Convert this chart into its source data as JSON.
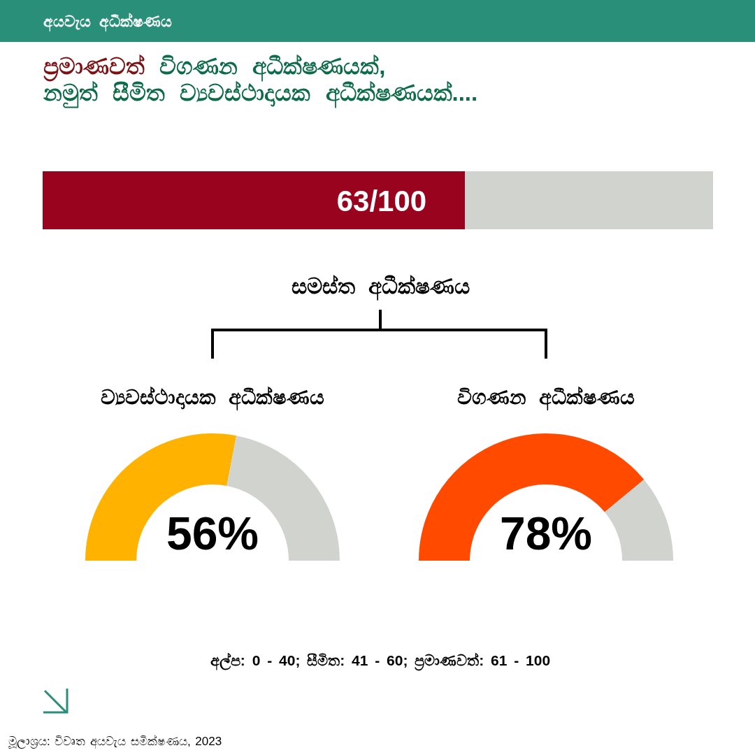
{
  "chart_data": [
    {
      "type": "bar",
      "orientation": "horizontal",
      "stacked": true,
      "title": "ප්‍රමාණවත් විගණන අධීක්ෂණයක්,\nනමුත් සීමිත ව්‍යවස්ථාදායක අධීක්ෂණයක්....",
      "xlabel": "සමස්ත අධීක්ෂණය",
      "categories": [
        null
      ],
      "series": [
        {
          "color": "#9a031e",
          "values": [
            63
          ],
          "value_labels": [
            "63/100"
          ]
        },
        {
          "color": "#d0d3ce",
          "values": [
            37
          ]
        }
      ],
      "xlim": [
        0,
        100
      ],
      "annotations": [
        "අයවැය අධීක්ෂණය",
        "අල්ප: 0 - 40; සීමිත: 41 - 60; ප්‍රමාණවත්: 61 - 100",
        "මූලාශ්‍රය: විවෘත අයවැය සමීක්ෂණය, 2023"
      ]
    },
    {
      "type": "donut",
      "title": "ව්‍යවස්ථාදායක අධීක්ෂණය",
      "categories": [
        null,
        null
      ],
      "values": [
        56,
        44
      ],
      "colors": [
        "#ffb300",
        "#d0d3ce"
      ],
      "value_labels": [
        "56%",
        null
      ]
    },
    {
      "type": "donut",
      "title": "විගණන අධීක්ෂණය",
      "categories": [
        null,
        null
      ],
      "values": [
        78,
        22
      ],
      "colors": [
        "#ff4a00",
        "#d0d3ce"
      ],
      "value_labels": [
        "78%",
        null
      ]
    }
  ]
}
